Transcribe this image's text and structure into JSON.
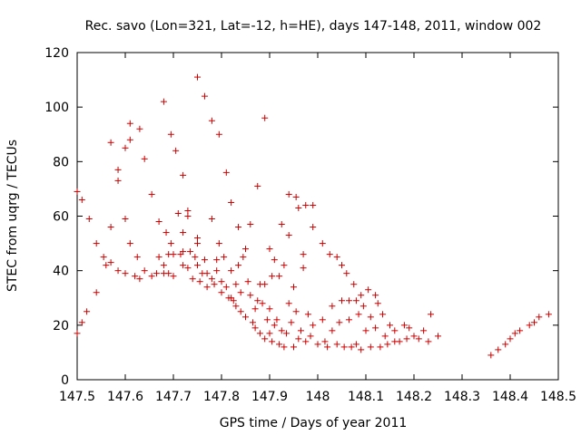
{
  "chart_data": {
    "type": "scatter",
    "title": "Rec. savo (Lon=321, Lat=-12, h=HE), days 147-148, 2011, window 002",
    "xlabel": "GPS time / Days of year 2011",
    "ylabel": "STEC from uqrg / TECUs",
    "xlim": [
      147.5,
      148.5
    ],
    "ylim": [
      0,
      120
    ],
    "x_ticks": [
      "147.5",
      "147.6",
      "147.7",
      "147.8",
      "147.9",
      "148",
      "148.1",
      "148.2",
      "148.3",
      "148.4",
      "148.5"
    ],
    "y_ticks": [
      "0",
      "20",
      "40",
      "60",
      "80",
      "100",
      "120"
    ],
    "grid": false,
    "series": [
      {
        "marker": "+",
        "color": "#cc0000",
        "points": [
          [
            147.5,
            69
          ],
          [
            147.5,
            17
          ],
          [
            147.51,
            21
          ],
          [
            147.51,
            66
          ],
          [
            147.52,
            25
          ],
          [
            147.525,
            59
          ],
          [
            147.54,
            50
          ],
          [
            147.54,
            32
          ],
          [
            147.555,
            45
          ],
          [
            147.56,
            42
          ],
          [
            147.57,
            56
          ],
          [
            147.57,
            43
          ],
          [
            147.57,
            87
          ],
          [
            147.585,
            40
          ],
          [
            147.585,
            73
          ],
          [
            147.585,
            77
          ],
          [
            147.6,
            39
          ],
          [
            147.6,
            85
          ],
          [
            147.6,
            59
          ],
          [
            147.61,
            50
          ],
          [
            147.61,
            88
          ],
          [
            147.61,
            94
          ],
          [
            147.62,
            38
          ],
          [
            147.625,
            45
          ],
          [
            147.63,
            92
          ],
          [
            147.63,
            37
          ],
          [
            147.64,
            81
          ],
          [
            147.64,
            40
          ],
          [
            147.655,
            68
          ],
          [
            147.655,
            38
          ],
          [
            147.665,
            39
          ],
          [
            147.67,
            45
          ],
          [
            147.67,
            58
          ],
          [
            147.68,
            39
          ],
          [
            147.68,
            102
          ],
          [
            147.68,
            42
          ],
          [
            147.685,
            54
          ],
          [
            147.69,
            39
          ],
          [
            147.69,
            46
          ],
          [
            147.695,
            90
          ],
          [
            147.695,
            50
          ],
          [
            147.7,
            46
          ],
          [
            147.7,
            38
          ],
          [
            147.705,
            84
          ],
          [
            147.71,
            61
          ],
          [
            147.715,
            46
          ],
          [
            147.72,
            75
          ],
          [
            147.72,
            47
          ],
          [
            147.72,
            54
          ],
          [
            147.72,
            42
          ],
          [
            147.73,
            60
          ],
          [
            147.73,
            62
          ],
          [
            147.73,
            41
          ],
          [
            147.735,
            47
          ],
          [
            147.74,
            37
          ],
          [
            147.745,
            45
          ],
          [
            147.75,
            111
          ],
          [
            147.75,
            50
          ],
          [
            147.75,
            52
          ],
          [
            147.75,
            42
          ],
          [
            147.755,
            36
          ],
          [
            147.76,
            39
          ],
          [
            147.765,
            44
          ],
          [
            147.765,
            104
          ],
          [
            147.77,
            34
          ],
          [
            147.77,
            39
          ],
          [
            147.78,
            95
          ],
          [
            147.78,
            59
          ],
          [
            147.78,
            37
          ],
          [
            147.785,
            35
          ],
          [
            147.79,
            44
          ],
          [
            147.79,
            40
          ],
          [
            147.795,
            90
          ],
          [
            147.795,
            50
          ],
          [
            147.8,
            32
          ],
          [
            147.8,
            36
          ],
          [
            147.805,
            45
          ],
          [
            147.81,
            76
          ],
          [
            147.81,
            34
          ],
          [
            147.815,
            30
          ],
          [
            147.82,
            30
          ],
          [
            147.82,
            65
          ],
          [
            147.82,
            40
          ],
          [
            147.825,
            29
          ],
          [
            147.83,
            35
          ],
          [
            147.83,
            27
          ],
          [
            147.835,
            56
          ],
          [
            147.835,
            42
          ],
          [
            147.84,
            25
          ],
          [
            147.84,
            32
          ],
          [
            147.845,
            45
          ],
          [
            147.85,
            48
          ],
          [
            147.85,
            23
          ],
          [
            147.855,
            36
          ],
          [
            147.86,
            57
          ],
          [
            147.86,
            31
          ],
          [
            147.865,
            21
          ],
          [
            147.87,
            26
          ],
          [
            147.87,
            19
          ],
          [
            147.875,
            71
          ],
          [
            147.875,
            29
          ],
          [
            147.88,
            17
          ],
          [
            147.88,
            35
          ],
          [
            147.885,
            28
          ],
          [
            147.89,
            15
          ],
          [
            147.89,
            96
          ],
          [
            147.89,
            35
          ],
          [
            147.895,
            22
          ],
          [
            147.9,
            17
          ],
          [
            147.9,
            48
          ],
          [
            147.9,
            26
          ],
          [
            147.905,
            14
          ],
          [
            147.905,
            38
          ],
          [
            147.91,
            44
          ],
          [
            147.91,
            20
          ],
          [
            147.915,
            22
          ],
          [
            147.92,
            13
          ],
          [
            147.92,
            38
          ],
          [
            147.925,
            57
          ],
          [
            147.925,
            18
          ],
          [
            147.93,
            12
          ],
          [
            147.93,
            42
          ],
          [
            147.935,
            17
          ],
          [
            147.94,
            68
          ],
          [
            147.94,
            53
          ],
          [
            147.94,
            28
          ],
          [
            147.945,
            21
          ],
          [
            147.95,
            12
          ],
          [
            147.95,
            34
          ],
          [
            147.955,
            67
          ],
          [
            147.955,
            25
          ],
          [
            147.96,
            63
          ],
          [
            147.96,
            15
          ],
          [
            147.965,
            18
          ],
          [
            147.97,
            46
          ],
          [
            147.97,
            41
          ],
          [
            147.975,
            14
          ],
          [
            147.975,
            64
          ],
          [
            147.98,
            24
          ],
          [
            147.985,
            16
          ],
          [
            147.99,
            64
          ],
          [
            147.99,
            56
          ],
          [
            147.99,
            20
          ],
          [
            148.0,
            13
          ],
          [
            148.01,
            50
          ],
          [
            148.01,
            22
          ],
          [
            148.015,
            14
          ],
          [
            148.02,
            12
          ],
          [
            148.025,
            46
          ],
          [
            148.03,
            27
          ],
          [
            148.03,
            18
          ],
          [
            148.04,
            45
          ],
          [
            148.04,
            13
          ],
          [
            148.045,
            21
          ],
          [
            148.05,
            29
          ],
          [
            148.05,
            42
          ],
          [
            148.055,
            12
          ],
          [
            148.06,
            39
          ],
          [
            148.065,
            29
          ],
          [
            148.065,
            22
          ],
          [
            148.07,
            12
          ],
          [
            148.075,
            35
          ],
          [
            148.08,
            29
          ],
          [
            148.08,
            13
          ],
          [
            148.085,
            24
          ],
          [
            148.09,
            31
          ],
          [
            148.09,
            11
          ],
          [
            148.095,
            27
          ],
          [
            148.1,
            18
          ],
          [
            148.105,
            33
          ],
          [
            148.11,
            12
          ],
          [
            148.11,
            23
          ],
          [
            148.12,
            31
          ],
          [
            148.12,
            19
          ],
          [
            148.125,
            28
          ],
          [
            148.13,
            12
          ],
          [
            148.135,
            24
          ],
          [
            148.14,
            16
          ],
          [
            148.145,
            13
          ],
          [
            148.15,
            20
          ],
          [
            148.16,
            18
          ],
          [
            148.16,
            14
          ],
          [
            148.17,
            14
          ],
          [
            148.18,
            20
          ],
          [
            148.185,
            15
          ],
          [
            148.19,
            19
          ],
          [
            148.2,
            16
          ],
          [
            148.21,
            15
          ],
          [
            148.22,
            18
          ],
          [
            148.23,
            14
          ],
          [
            148.235,
            24
          ],
          [
            148.25,
            16
          ],
          [
            148.36,
            9
          ],
          [
            148.375,
            11
          ],
          [
            148.39,
            13
          ],
          [
            148.4,
            15
          ],
          [
            148.41,
            17
          ],
          [
            148.42,
            18
          ],
          [
            148.44,
            20
          ],
          [
            148.45,
            21
          ],
          [
            148.46,
            23
          ],
          [
            148.48,
            24
          ]
        ]
      }
    ]
  }
}
